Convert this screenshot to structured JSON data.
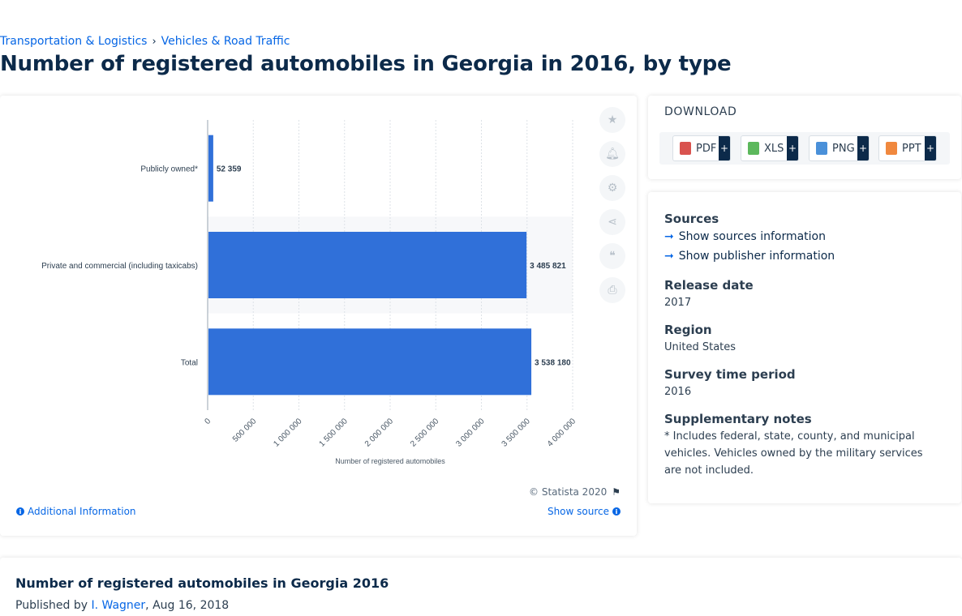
{
  "breadcrumb": {
    "items": [
      "Transportation & Logistics",
      "Vehicles & Road Traffic"
    ],
    "separator": "›"
  },
  "page_title": "Number of registered automobiles in Georgia in 2016, by type",
  "chart_data": {
    "type": "bar",
    "orientation": "horizontal",
    "categories": [
      "Publicly owned*",
      "Private and commercial (including taxicabs)",
      "Total"
    ],
    "values": [
      52359,
      3485821,
      3538180
    ],
    "value_labels": [
      "52 359",
      "3 485 821",
      "3 538 180"
    ],
    "xlabel": "Number of registered automobiles",
    "xlim": [
      0,
      4000000
    ],
    "xticks": [
      "0",
      "500 000",
      "1 000 000",
      "1 500 000",
      "2 000 000",
      "2 500 000",
      "3 000 000",
      "3 500 000",
      "4 000 000"
    ],
    "bar_color": "#3070d9",
    "grid": true
  },
  "toolbar": {
    "icons": [
      "star-icon",
      "bell-icon",
      "gear-icon",
      "share-icon",
      "quote-icon",
      "print-icon"
    ]
  },
  "chart_footer": {
    "copyright": "© Statista 2020",
    "additional_info": "Additional Information",
    "show_source": "Show source"
  },
  "download": {
    "title": "DOWNLOAD",
    "formats": [
      {
        "label": "PDF",
        "color": "#d9534f"
      },
      {
        "label": "XLS",
        "color": "#5cb85c"
      },
      {
        "label": "PNG",
        "color": "#4a90d9"
      },
      {
        "label": "PPT",
        "color": "#f0883e"
      }
    ],
    "plus": "+"
  },
  "info": {
    "sources_label": "Sources",
    "show_sources": "Show sources information",
    "show_publisher": "Show publisher information",
    "release_label": "Release date",
    "release_value": "2017",
    "region_label": "Region",
    "region_value": "United States",
    "survey_label": "Survey time period",
    "survey_value": "2016",
    "notes_label": "Supplementary notes",
    "notes_value": "* Includes federal, state, county, and municipal vehicles. Vehicles owned by the military services are not included."
  },
  "bottom": {
    "title": "Number of registered automobiles in Georgia 2016",
    "published_prefix": "Published by ",
    "author": "I. Wagner",
    "date": ", Aug 16, 2018"
  }
}
